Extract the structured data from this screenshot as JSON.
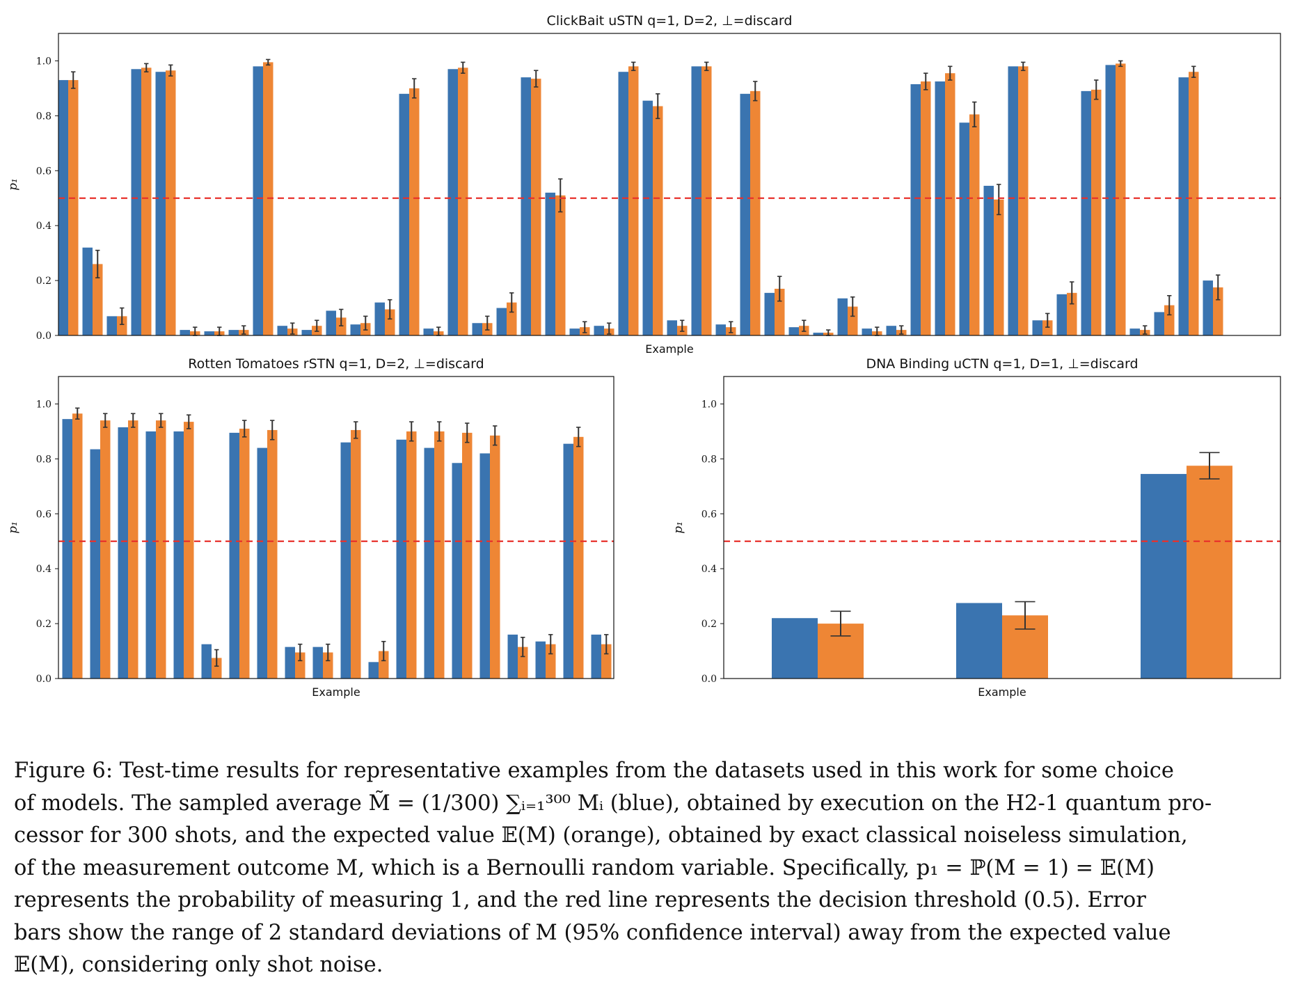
{
  "chart_data": [
    {
      "type": "bar",
      "title": "ClickBait uSTN q=1, D=2, ⊥=discard",
      "xlabel": "Example",
      "ylabel": "p₁",
      "ylim": [
        0,
        1.1
      ],
      "yticks": [
        "0.0",
        "0.2",
        "0.4",
        "0.6",
        "0.8",
        "1.0"
      ],
      "threshold": 0.5,
      "series": [
        {
          "values": [
            0.93,
            0.32,
            0.07,
            0.97,
            0.96,
            0.02,
            0.015,
            0.02,
            0.98,
            0.035,
            0.02,
            0.09,
            0.04,
            0.12,
            0.88,
            0.025,
            0.97,
            0.045,
            0.1,
            0.94,
            0.52,
            0.025,
            0.035,
            0.96,
            0.855,
            0.055,
            0.98,
            0.04,
            0.88,
            0.155,
            0.03,
            0.01,
            0.135,
            0.025,
            0.035,
            0.915,
            0.925,
            0.775,
            0.545,
            0.98,
            0.055,
            0.15,
            0.89,
            0.985,
            0.025,
            0.085,
            0.94,
            0.2
          ]
        },
        {
          "values": [
            0.93,
            0.26,
            0.07,
            0.975,
            0.965,
            0.015,
            0.015,
            0.02,
            0.995,
            0.025,
            0.035,
            0.065,
            0.045,
            0.095,
            0.9,
            0.015,
            0.975,
            0.045,
            0.12,
            0.935,
            0.51,
            0.03,
            0.025,
            0.98,
            0.835,
            0.035,
            0.98,
            0.03,
            0.89,
            0.17,
            0.035,
            0.01,
            0.105,
            0.015,
            0.02,
            0.925,
            0.955,
            0.805,
            0.495,
            0.98,
            0.055,
            0.155,
            0.895,
            0.99,
            0.02,
            0.11,
            0.96,
            0.175
          ],
          "errors": [
            0.03,
            0.05,
            0.03,
            0.015,
            0.02,
            0.015,
            0.015,
            0.015,
            0.01,
            0.02,
            0.02,
            0.03,
            0.025,
            0.035,
            0.035,
            0.015,
            0.02,
            0.025,
            0.035,
            0.03,
            0.06,
            0.02,
            0.02,
            0.015,
            0.045,
            0.02,
            0.015,
            0.02,
            0.035,
            0.045,
            0.02,
            0.01,
            0.035,
            0.015,
            0.015,
            0.03,
            0.025,
            0.045,
            0.055,
            0.015,
            0.025,
            0.04,
            0.035,
            0.01,
            0.015,
            0.035,
            0.02,
            0.045
          ]
        }
      ]
    },
    {
      "type": "bar",
      "title": "Rotten Tomatoes rSTN q=1, D=2, ⊥=discard",
      "xlabel": "Example",
      "ylabel": "p₁",
      "ylim": [
        0,
        1.1
      ],
      "yticks": [
        "0.0",
        "0.2",
        "0.4",
        "0.6",
        "0.8",
        "1.0"
      ],
      "threshold": 0.5,
      "series": [
        {
          "values": [
            0.945,
            0.835,
            0.915,
            0.9,
            0.9,
            0.125,
            0.895,
            0.84,
            0.115,
            0.115,
            0.86,
            0.06,
            0.87,
            0.84,
            0.785,
            0.82,
            0.16,
            0.135,
            0.855,
            0.16
          ]
        },
        {
          "values": [
            0.965,
            0.94,
            0.94,
            0.94,
            0.935,
            0.075,
            0.91,
            0.905,
            0.095,
            0.095,
            0.905,
            0.1,
            0.9,
            0.9,
            0.895,
            0.885,
            0.115,
            0.125,
            0.88,
            0.125
          ],
          "errors": [
            0.02,
            0.025,
            0.025,
            0.025,
            0.025,
            0.03,
            0.03,
            0.035,
            0.03,
            0.03,
            0.03,
            0.035,
            0.035,
            0.035,
            0.035,
            0.035,
            0.035,
            0.035,
            0.035,
            0.035
          ]
        }
      ]
    },
    {
      "type": "bar",
      "title": "DNA Binding uCTN q=1, D=1, ⊥=discard",
      "xlabel": "Example",
      "ylabel": "p₁",
      "ylim": [
        0,
        1.1
      ],
      "yticks": [
        "0.0",
        "0.2",
        "0.4",
        "0.6",
        "0.8",
        "1.0"
      ],
      "threshold": 0.5,
      "series": [
        {
          "values": [
            0.22,
            0.275,
            0.745
          ]
        },
        {
          "values": [
            0.2,
            0.23,
            0.775
          ],
          "errors": [
            0.045,
            0.05,
            0.048
          ]
        }
      ]
    }
  ],
  "colors": {
    "blue": "#3a74b0",
    "orange": "#ee8635",
    "threshold": "#e8312b",
    "error_bar": "#333333"
  },
  "caption": {
    "lines": [
      "Figure 6: Test-time results for representative examples from the datasets used in this work for some choice",
      "of models.  The sampled average M̃ = (1/300) ∑ᵢ₌₁³⁰⁰ Mᵢ (blue), obtained by execution on the H2-1 quantum pro-",
      "cessor for 300 shots, and the expected value 𝔼(M) (orange), obtained by exact classical noiseless simulation,",
      "of the measurement outcome M, which is a Bernoulli random variable. Specifically, p₁ = ℙ(M = 1) = 𝔼(M)",
      "represents the probability of measuring 1, and the red line represents the decision threshold (0.5).  Error",
      "bars show the range of 2 standard deviations of M (95% confidence interval) away from the expected value",
      "𝔼(M), considering only shot noise."
    ]
  }
}
